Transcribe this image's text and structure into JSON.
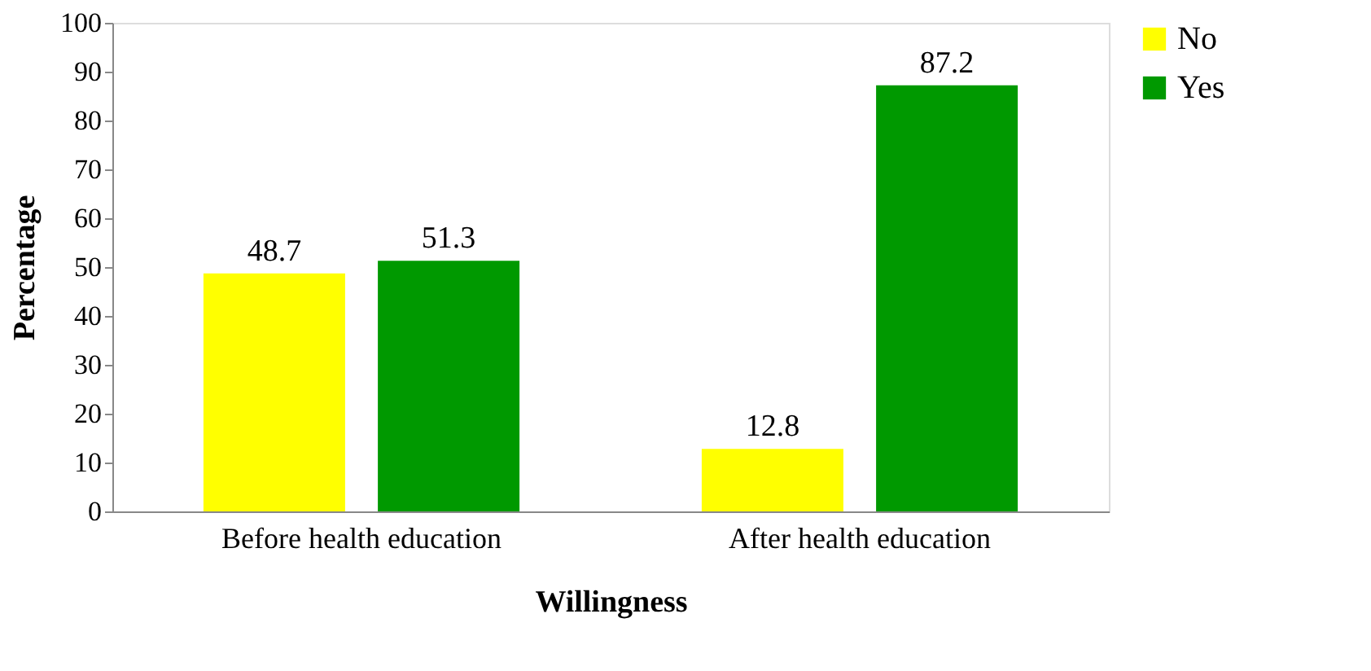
{
  "chart_data": {
    "type": "bar",
    "xlabel": "Willingness",
    "ylabel": "Percentage",
    "categories": [
      "Before health education",
      "After health education"
    ],
    "series": [
      {
        "name": "No",
        "color": "#ffff00",
        "values": [
          48.7,
          12.8
        ]
      },
      {
        "name": "Yes",
        "color": "#009900",
        "values": [
          51.3,
          87.2
        ]
      }
    ],
    "ylim": [
      0,
      100
    ],
    "yticks": [
      0,
      10,
      20,
      30,
      40,
      50,
      60,
      70,
      80,
      90,
      100
    ],
    "grid": false,
    "legend": "right",
    "data_labels": true
  }
}
